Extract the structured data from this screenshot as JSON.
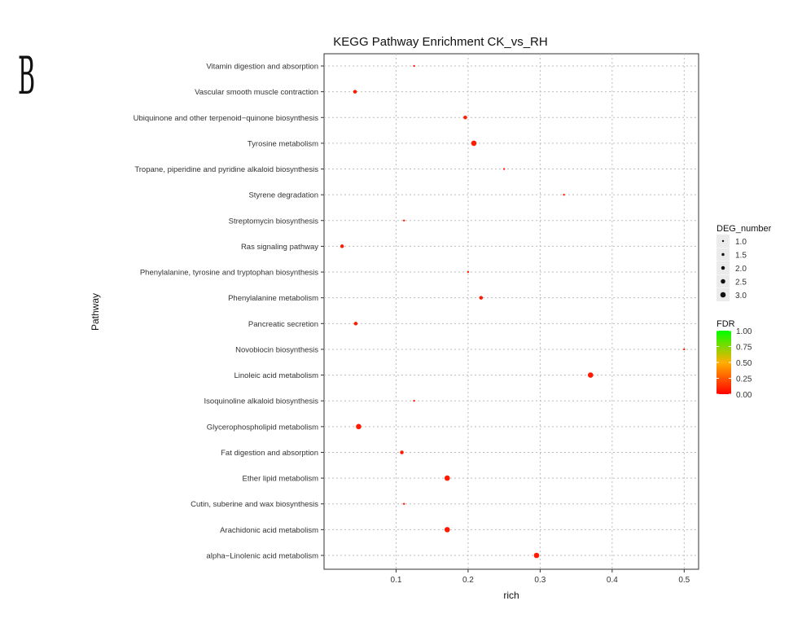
{
  "panel_label": "B",
  "chart_data": {
    "type": "scatter",
    "title": "KEGG Pathway Enrichment  CK_vs_RH",
    "xlabel": "rich",
    "ylabel": "Pathway",
    "xlim": [
      0.0,
      0.52
    ],
    "xticks": [
      0.1,
      0.2,
      0.3,
      0.4,
      0.5
    ],
    "xtick_labels": [
      "0.1",
      "0.2",
      "0.3",
      "0.4",
      "0.5"
    ],
    "grid": true,
    "categories": [
      "Vitamin digestion and absorption",
      "Vascular smooth muscle contraction",
      "Ubiquinone and other terpenoid−quinone biosynthesis",
      "Tyrosine metabolism",
      "Tropane, piperidine and pyridine alkaloid biosynthesis",
      "Styrene degradation",
      "Streptomycin biosynthesis",
      "Ras signaling pathway",
      "Phenylalanine, tyrosine and tryptophan biosynthesis",
      "Phenylalanine metabolism",
      "Pancreatic secretion",
      "Novobiocin biosynthesis",
      "Linoleic acid metabolism",
      "Isoquinoline alkaloid biosynthesis",
      "Glycerophospholipid metabolism",
      "Fat digestion and absorption",
      "Ether lipid metabolism",
      "Cutin, suberine and wax biosynthesis",
      "Arachidonic acid metabolism",
      "alpha−Linolenic acid metabolism"
    ],
    "points": [
      {
        "rich": 0.125,
        "deg_number": 1,
        "fdr": 0.02
      },
      {
        "rich": 0.043,
        "deg_number": 2,
        "fdr": 0.02
      },
      {
        "rich": 0.196,
        "deg_number": 2,
        "fdr": 0.02
      },
      {
        "rich": 0.208,
        "deg_number": 3,
        "fdr": 0.02
      },
      {
        "rich": 0.25,
        "deg_number": 1,
        "fdr": 0.02
      },
      {
        "rich": 0.333,
        "deg_number": 1,
        "fdr": 0.02
      },
      {
        "rich": 0.111,
        "deg_number": 1,
        "fdr": 0.02
      },
      {
        "rich": 0.025,
        "deg_number": 2,
        "fdr": 0.02
      },
      {
        "rich": 0.2,
        "deg_number": 1,
        "fdr": 0.02
      },
      {
        "rich": 0.218,
        "deg_number": 2,
        "fdr": 0.02
      },
      {
        "rich": 0.044,
        "deg_number": 2,
        "fdr": 0.02
      },
      {
        "rich": 0.5,
        "deg_number": 1,
        "fdr": 0.02
      },
      {
        "rich": 0.37,
        "deg_number": 3,
        "fdr": 0.02
      },
      {
        "rich": 0.125,
        "deg_number": 1,
        "fdr": 0.02
      },
      {
        "rich": 0.048,
        "deg_number": 3,
        "fdr": 0.02
      },
      {
        "rich": 0.108,
        "deg_number": 2,
        "fdr": 0.02
      },
      {
        "rich": 0.171,
        "deg_number": 3,
        "fdr": 0.02
      },
      {
        "rich": 0.111,
        "deg_number": 1,
        "fdr": 0.02
      },
      {
        "rich": 0.171,
        "deg_number": 3,
        "fdr": 0.02
      },
      {
        "rich": 0.295,
        "deg_number": 3,
        "fdr": 0.02
      }
    ],
    "legend": {
      "size_title": "DEG_number",
      "size_levels": [
        1.0,
        1.5,
        2.0,
        2.5,
        3.0
      ],
      "size_labels": [
        "1.0",
        "1.5",
        "2.0",
        "2.5",
        "3.0"
      ],
      "color_title": "FDR",
      "color_labels": [
        "1.00",
        "0.75",
        "0.50",
        "0.25",
        "0.00"
      ],
      "color_low": "#ff0000",
      "color_high": "#00ff00",
      "placement": "right"
    },
    "grid_color": "#bdbdbd",
    "point_color": "#ff1a00"
  }
}
